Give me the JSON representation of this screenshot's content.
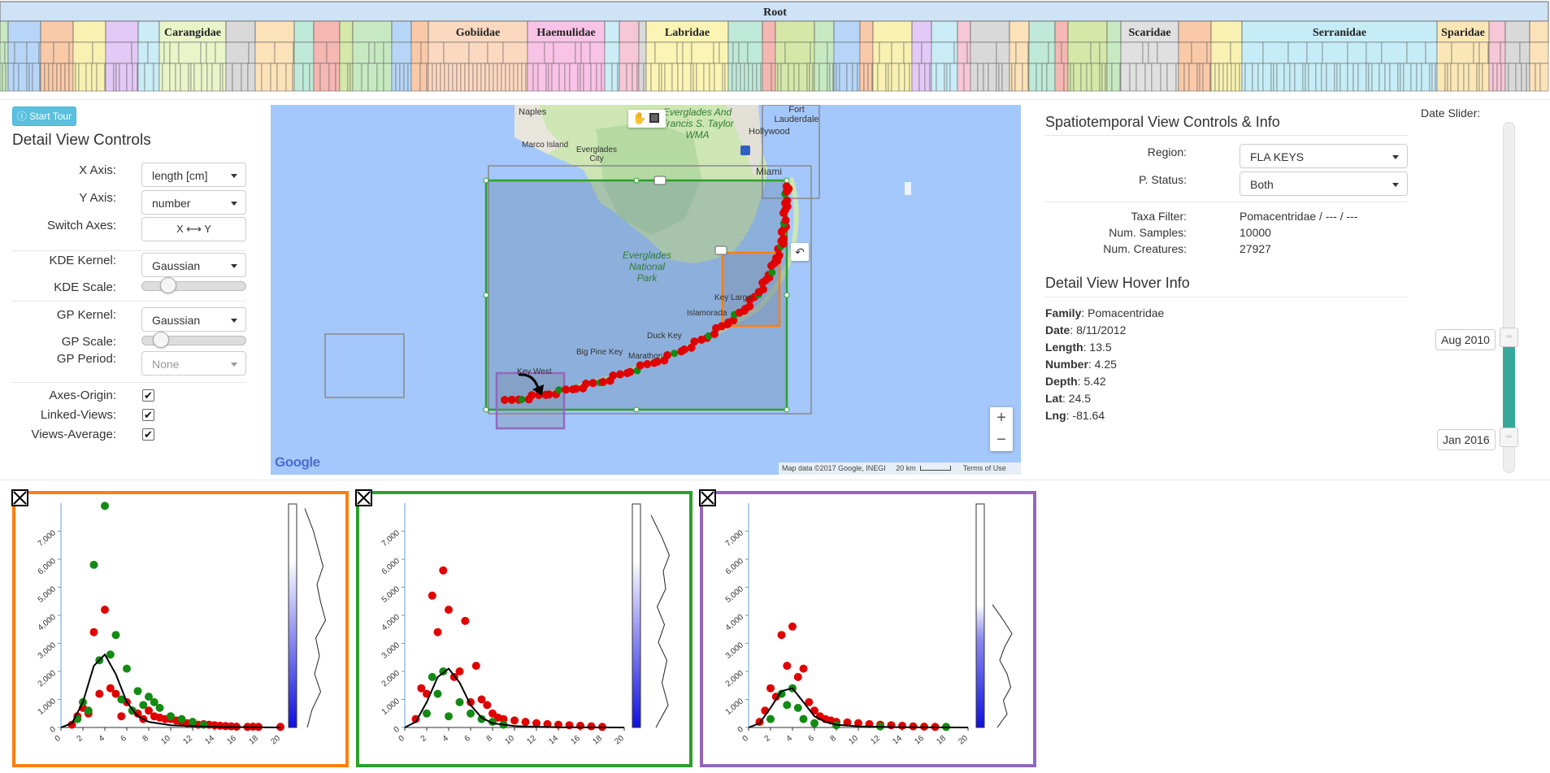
{
  "icicle": {
    "root_label": "Root",
    "family_labels": [
      "Carangidae",
      "Gobiidae",
      "Haemulidae",
      "Labridae",
      "Scaridae",
      "Serranidae",
      "Sparidae"
    ]
  },
  "controls": {
    "tour_button": "Start Tour",
    "title": "Detail View Controls",
    "x_axis_label": "X Axis:",
    "x_axis_value": "length [cm]",
    "y_axis_label": "Y Axis:",
    "y_axis_value": "number",
    "switch_label": "Switch Axes:",
    "switch_button": "X ⟷ Y",
    "kde_kernel_label": "KDE Kernel:",
    "kde_kernel_value": "Gaussian",
    "kde_scale_label": "KDE Scale:",
    "kde_scale_level": 0.2,
    "gp_kernel_label": "GP Kernel:",
    "gp_kernel_value": "Gaussian",
    "gp_scale_label": "GP Scale:",
    "gp_scale_level": 0.12,
    "gp_period_label": "GP Period:",
    "gp_period_value": "None",
    "axes_origin_label": "Axes-Origin:",
    "axes_origin_checked": true,
    "linked_views_label": "Linked-Views:",
    "linked_views_checked": true,
    "views_average_label": "Views-Average:",
    "views_average_checked": true
  },
  "map": {
    "places": [
      "Naples",
      "Marco Island",
      "Everglades City",
      "Everglades And Francis S. Taylor WMA",
      "Fort Lauderdale",
      "Hollywood",
      "Miami",
      "Everglades National Park",
      "Key Largo",
      "Islamorada",
      "Duck Key",
      "Big Pine Key",
      "Marathon",
      "Key West"
    ],
    "attribution": "Map data ©2017 Google, INEGI",
    "scale": "20 km",
    "terms": "Terms of Use",
    "logo": "Google",
    "zoom_in": "+",
    "zoom_out": "−",
    "region_colors": {
      "orange": "#ff7f0e",
      "green": "#2ca02c",
      "purple": "#9467bd"
    }
  },
  "spatiotemporal": {
    "title": "Spatiotemporal View Controls & Info",
    "region_label": "Region:",
    "region_value": "FLA KEYS",
    "pstatus_label": "P. Status:",
    "pstatus_value": "Both",
    "taxa_label": "Taxa Filter:",
    "taxa_value": "Pomacentridae / --- / ---",
    "samples_label": "Num. Samples:",
    "samples_value": "10000",
    "creatures_label": "Num. Creatures:",
    "creatures_value": "27927"
  },
  "hover": {
    "title": "Detail View Hover Info",
    "rows": [
      {
        "k": "Family",
        "v": "Pomacentridae"
      },
      {
        "k": "Date",
        "v": "8/11/2012"
      },
      {
        "k": "Length",
        "v": "13.5"
      },
      {
        "k": "Number",
        "v": "4.25"
      },
      {
        "k": "Depth",
        "v": "5.42"
      },
      {
        "k": "Lat",
        "v": "24.5"
      },
      {
        "k": "Lng",
        "v": "-81.64"
      }
    ]
  },
  "date_slider": {
    "label": "Date Slider:",
    "start": "Aug 2010",
    "end": "Jan 2016"
  },
  "chart_data": [
    {
      "type": "scatter",
      "frame_color": "#ff7f0e",
      "xlim": [
        0,
        20
      ],
      "ylim": [
        0,
        8000
      ],
      "xticks": [
        "0",
        "2",
        "4",
        "6",
        "8",
        "10",
        "12",
        "14",
        "16",
        "18",
        "20"
      ],
      "yticks": [
        "0",
        "1,000",
        "2,000",
        "3,000",
        "4,000",
        "5,000",
        "6,000",
        "7,000"
      ],
      "series": [
        {
          "color": "#e00000",
          "x": [
            1,
            1.5,
            2,
            2.5,
            3,
            3.5,
            4,
            4.5,
            5,
            5.5,
            6,
            6.5,
            7,
            7.5,
            8,
            8.5,
            9,
            9.5,
            10,
            10.5,
            11,
            11.5,
            12,
            12.5,
            13,
            13.5,
            14,
            14.5,
            15,
            15.5,
            16,
            17,
            17.5,
            18,
            20
          ],
          "y": [
            100,
            400,
            700,
            500,
            3400,
            1200,
            4200,
            1400,
            1200,
            400,
            900,
            600,
            500,
            300,
            600,
            400,
            350,
            300,
            300,
            250,
            200,
            150,
            150,
            100,
            120,
            100,
            80,
            60,
            50,
            40,
            30,
            20,
            30,
            20,
            20
          ]
        },
        {
          "color": "#138a13",
          "x": [
            1.5,
            2,
            2.5,
            3,
            3.5,
            4,
            4.5,
            5,
            5.5,
            6,
            6.5,
            7,
            7.5,
            8,
            8.5,
            9,
            10,
            11,
            12,
            13
          ],
          "y": [
            300,
            900,
            600,
            5800,
            2400,
            7900,
            2600,
            3300,
            1000,
            2100,
            600,
            1300,
            800,
            1100,
            900,
            700,
            400,
            300,
            200,
            100
          ]
        }
      ],
      "curve": [
        [
          0,
          0
        ],
        [
          1,
          150
        ],
        [
          2,
          900
        ],
        [
          3,
          2200
        ],
        [
          4,
          2600
        ],
        [
          5,
          1900
        ],
        [
          6,
          900
        ],
        [
          7,
          400
        ],
        [
          8,
          200
        ],
        [
          10,
          80
        ],
        [
          14,
          20
        ],
        [
          20,
          0
        ]
      ],
      "kde": [
        [
          0.02,
          0
        ],
        [
          0.12,
          0.35
        ],
        [
          0.2,
          0.55
        ],
        [
          0.28,
          0.75
        ],
        [
          0.36,
          0.5
        ],
        [
          0.44,
          0.65
        ],
        [
          0.52,
          0.85
        ],
        [
          0.6,
          0.45
        ],
        [
          0.68,
          0.6
        ],
        [
          0.76,
          0.4
        ],
        [
          0.84,
          0.65
        ],
        [
          0.92,
          0.3
        ],
        [
          1,
          0.1
        ]
      ]
    },
    {
      "type": "scatter",
      "frame_color": "#2ca02c",
      "xlim": [
        0,
        20
      ],
      "ylim": [
        0,
        8000
      ],
      "xticks": [
        "0",
        "2",
        "4",
        "6",
        "8",
        "10",
        "12",
        "14",
        "16",
        "18",
        "20"
      ],
      "yticks": [
        "0",
        "1,000",
        "2,000",
        "3,000",
        "4,000",
        "5,000",
        "6,000",
        "7,000"
      ],
      "series": [
        {
          "color": "#e00000",
          "x": [
            1,
            1.5,
            2,
            2.5,
            3,
            3.5,
            4,
            4.5,
            5,
            5.5,
            6,
            6.5,
            7,
            7.5,
            8,
            8.5,
            9,
            10,
            11,
            12,
            13,
            14,
            15,
            16,
            17,
            18
          ],
          "y": [
            300,
            1400,
            1200,
            4700,
            3400,
            5600,
            4200,
            1800,
            2000,
            3800,
            900,
            2200,
            1000,
            800,
            500,
            350,
            300,
            250,
            200,
            150,
            120,
            100,
            80,
            60,
            40,
            20
          ]
        },
        {
          "color": "#138a13",
          "x": [
            2,
            2.5,
            3,
            3.5,
            4,
            5,
            6,
            7,
            8,
            9
          ],
          "y": [
            500,
            1800,
            1200,
            2000,
            400,
            900,
            500,
            300,
            200,
            100
          ]
        }
      ],
      "curve": [
        [
          0,
          0
        ],
        [
          1,
          200
        ],
        [
          2,
          900
        ],
        [
          3,
          1800
        ],
        [
          4,
          2100
        ],
        [
          5,
          1600
        ],
        [
          6,
          800
        ],
        [
          7,
          350
        ],
        [
          8,
          150
        ],
        [
          10,
          50
        ],
        [
          14,
          10
        ],
        [
          20,
          0
        ]
      ],
      "kde": [
        [
          0.05,
          0.1
        ],
        [
          0.15,
          0.55
        ],
        [
          0.23,
          0.85
        ],
        [
          0.3,
          0.6
        ],
        [
          0.38,
          0.7
        ],
        [
          0.46,
          0.35
        ],
        [
          0.54,
          0.65
        ],
        [
          0.62,
          0.4
        ],
        [
          0.7,
          0.75
        ],
        [
          0.8,
          0.55
        ],
        [
          0.9,
          0.8
        ],
        [
          1,
          0.3
        ]
      ]
    },
    {
      "type": "scatter",
      "frame_color": "#9467bd",
      "xlim": [
        0,
        20
      ],
      "ylim": [
        0,
        8000
      ],
      "xticks": [
        "0",
        "2",
        "4",
        "6",
        "8",
        "10",
        "12",
        "14",
        "16",
        "18",
        "20"
      ],
      "yticks": [
        "0",
        "1,000",
        "2,000",
        "3,000",
        "4,000",
        "5,000",
        "6,000",
        "7,000"
      ],
      "series": [
        {
          "color": "#e00000",
          "x": [
            1,
            1.5,
            2,
            2.5,
            3,
            3.5,
            4,
            4.5,
            5,
            5.5,
            6,
            6.5,
            7,
            7.5,
            8,
            9,
            10,
            11,
            12,
            13,
            14,
            15,
            16,
            17
          ],
          "y": [
            200,
            600,
            1400,
            1100,
            3300,
            2200,
            3600,
            1800,
            2100,
            900,
            600,
            400,
            300,
            250,
            200,
            180,
            150,
            120,
            100,
            80,
            60,
            40,
            30,
            20
          ]
        },
        {
          "color": "#138a13",
          "x": [
            2,
            3,
            3.5,
            4,
            4.5,
            5,
            6,
            8,
            12,
            18
          ],
          "y": [
            300,
            1200,
            800,
            1400,
            700,
            300,
            150,
            80,
            40,
            20
          ]
        }
      ],
      "curve": [
        [
          0,
          0
        ],
        [
          1,
          150
        ],
        [
          2,
          700
        ],
        [
          3,
          1300
        ],
        [
          4,
          1400
        ],
        [
          5,
          900
        ],
        [
          6,
          400
        ],
        [
          7,
          200
        ],
        [
          8,
          100
        ],
        [
          10,
          40
        ],
        [
          14,
          10
        ],
        [
          20,
          0
        ]
      ],
      "kde": [
        [
          0.45,
          0
        ],
        [
          0.52,
          0.45
        ],
        [
          0.58,
          0.8
        ],
        [
          0.64,
          0.5
        ],
        [
          0.7,
          0.3
        ],
        [
          0.76,
          0.6
        ],
        [
          0.82,
          0.75
        ],
        [
          0.88,
          0.45
        ],
        [
          0.94,
          0.6
        ],
        [
          1,
          0.2
        ]
      ]
    }
  ]
}
